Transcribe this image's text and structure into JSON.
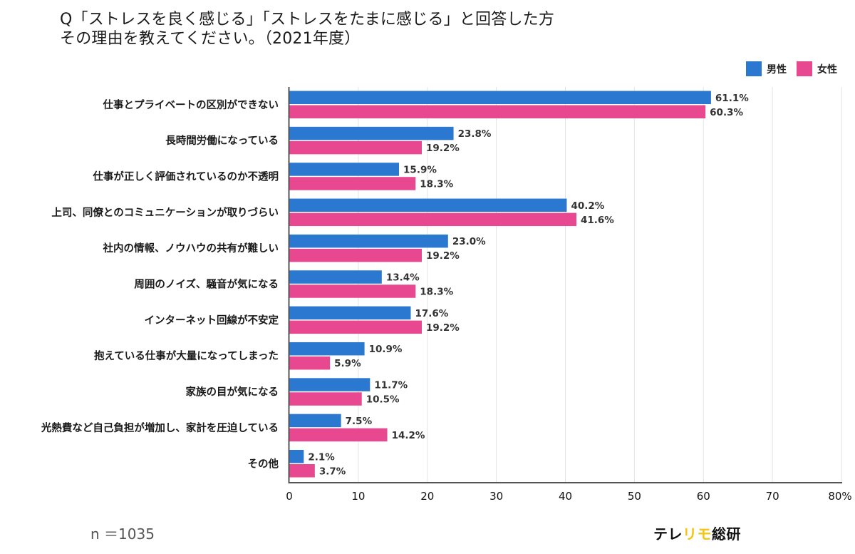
{
  "title": {
    "line1": "Q「ストレスを良く感じる」「ストレスをたまに感じる」と回答した方",
    "line2": "その理由を教えてください。（2021年度）"
  },
  "footer": {
    "sample_size": "n ＝1035",
    "logo_part1": "テレ",
    "logo_part2": "リモ",
    "logo_part3": "総研"
  },
  "colors": {
    "male": "#2a78d0",
    "female": "#e8488f",
    "logo_accent": "#f6c40f",
    "grid": "#e3e3e3",
    "axis": "#555555"
  },
  "chart_data": {
    "type": "bar",
    "orientation": "horizontal",
    "title": "Q「ストレスを良く感じる」「ストレスをたまに感じる」と回答した方 その理由を教えてください。（2021年度）",
    "xlabel": "",
    "ylabel": "",
    "xlim": [
      0,
      80
    ],
    "x_ticks": [
      0,
      10,
      20,
      30,
      40,
      50,
      60,
      70,
      80
    ],
    "x_tick_labels": [
      "0",
      "10",
      "20",
      "30",
      "40",
      "50",
      "60",
      "70",
      "80%"
    ],
    "grid": true,
    "legend_position": "top-right",
    "categories": [
      "仕事とプライベートの区別ができない",
      "長時間労働になっている",
      "仕事が正しく評価されているのか不透明",
      "上司、同僚とのコミュニケーションが取りづらい",
      "社内の情報、ノウハウの共有が難しい",
      "周囲のノイズ、騒音が気になる",
      "インターネット回線が不安定",
      "抱えている仕事が大量になってしまった",
      "家族の目が気になる",
      "光熱費など自己負担が増加し、家計を圧迫している",
      "その他"
    ],
    "series": [
      {
        "name": "男性",
        "color": "#2a78d0",
        "values": [
          61.1,
          23.8,
          15.9,
          40.2,
          23.0,
          13.4,
          17.6,
          10.9,
          11.7,
          7.5,
          2.1
        ],
        "labels": [
          "61.1%",
          "23.8%",
          "15.9%",
          "40.2%",
          "23.0%",
          "13.4%",
          "17.6%",
          "10.9%",
          "11.7%",
          "7.5%",
          "2.1%"
        ]
      },
      {
        "name": "女性",
        "color": "#e8488f",
        "values": [
          60.3,
          19.2,
          18.3,
          41.6,
          19.2,
          18.3,
          19.2,
          5.9,
          10.5,
          14.2,
          3.7
        ],
        "labels": [
          "60.3%",
          "19.2%",
          "18.3%",
          "41.6%",
          "19.2%",
          "18.3%",
          "19.2%",
          "5.9%",
          "10.5%",
          "14.2%",
          "3.7%"
        ]
      }
    ]
  }
}
